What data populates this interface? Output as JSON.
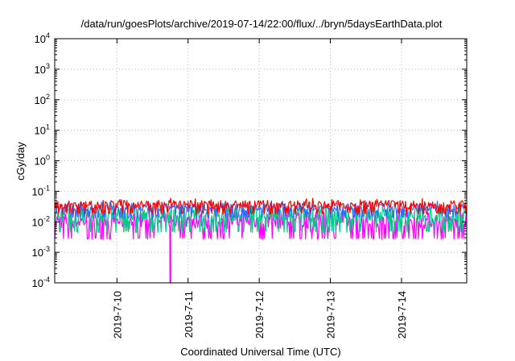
{
  "chart_data": {
    "type": "line",
    "title": "/data/run/goesPlots/archive/2019-07-14/22:00/flux/../bryn/5daysEarthData.plot",
    "xlabel": "Coordinated Universal Time (UTC)",
    "ylabel": "cGy/day",
    "yscale": "log",
    "ylim": [
      0.0001,
      10000
    ],
    "y_ticks": [
      {
        "mantissa": "10",
        "exponent": "-4"
      },
      {
        "mantissa": "10",
        "exponent": "-3"
      },
      {
        "mantissa": "10",
        "exponent": "-2"
      },
      {
        "mantissa": "10",
        "exponent": "-1"
      },
      {
        "mantissa": "10",
        "exponent": "0"
      },
      {
        "mantissa": "10",
        "exponent": "1"
      },
      {
        "mantissa": "10",
        "exponent": "2"
      },
      {
        "mantissa": "10",
        "exponent": "3"
      },
      {
        "mantissa": "10",
        "exponent": "4"
      }
    ],
    "xlim": [
      "2019-07-09 03:00",
      "2019-07-14 22:00"
    ],
    "x_ticks": [
      "2019-7-10",
      "2019-7-11",
      "2019-7-12",
      "2019-7-13",
      "2019-7-14"
    ],
    "grid": true,
    "series": [
      {
        "color": "#ff0000",
        "typical_range": [
          0.02,
          0.05
        ],
        "peak": 0.06
      },
      {
        "color": "#3366ff",
        "typical_range": [
          0.015,
          0.04
        ],
        "peak": 0.05
      },
      {
        "color": "#00cc88",
        "typical_range": [
          0.005,
          0.03
        ],
        "peak": 0.03
      },
      {
        "color": "#ff00ff",
        "typical_range": [
          0.003,
          0.02
        ],
        "peak": 0.02,
        "dip": {
          "x": "2019-07-10 18:00",
          "y": 0.0001
        }
      }
    ]
  }
}
